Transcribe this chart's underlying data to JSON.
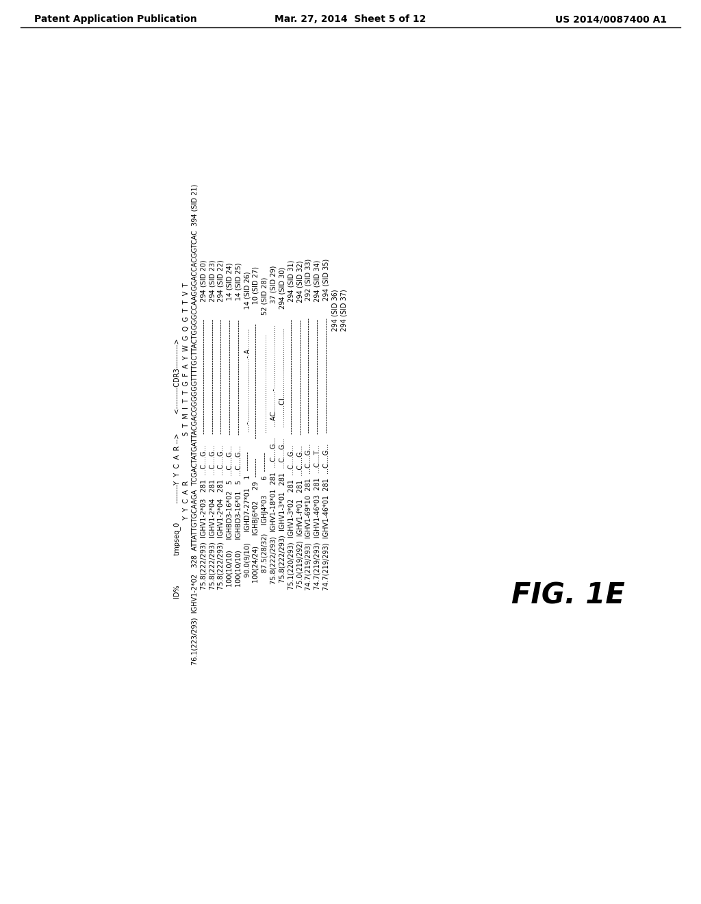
{
  "header_left": "Patent Application Publication",
  "header_center": "Mar. 27, 2014  Sheet 5 of 12",
  "header_right": "US 2014/0087400 A1",
  "figure_label": "FIG. 1E",
  "background_color": "#ffffff",
  "text_color": "#000000",
  "header_fontsize": 10,
  "content_fontsize": 7.0,
  "fig_label_fontsize": 30,
  "main_lines": [
    "ID%              tmpseq_0         --------Y  Y  C  A  R -->         <---------CDR3---------->                                         ",
    "                                  Y  Y  C  A  R                     S  T  M  I  T  T  G  F  A  Y  W  G  Q  G  T  T  V  T            ",
    "76.1(223/293)  IGHV1-2*02   328  ATTATTGTGCAAGA  TCGACTATGATTACGACGGGGGGTTTTGCTTACTGGGGCCAAGGGACCACGGTCAC  394 (SID 21)",
    "75.8(222/293)  IGHV1-2*03   281  ...C....G...     ------------------------------------------------        294 (SID 20)",
    "75.8(222/293)  IGHV1-2*04   281  ...C....G...     ------------------------------------------------        294 (SID 23)",
    "75.8(222/293)  IGHV1-2*04   281  ...C....G...     ------------------------------------------------        294 (SID 22)",
    "100(10/10)     IGHBD3-16*02   5  ...C....G...     ------------------------------------------------         14 (SID 24)",
    "100(10/10)     IGHBD3-16*01   5  ...C....G...     ------------------------------------------------         14 (SID 25)",
    "90.0(9/10)     IGHD7-27*01    1  --------         ....-...............................-.A..........         14 (SID 26)",
    "100(24/24)     IGHBJ6*02     29  --------         ------------------------------------------------         10 (SID 27)",
    "87.5(28/32)    IGHJ4*03       6  --------         ................................................         52 (SID 28)",
    "75.8(222/293)  IGHV1-18*01  281  ...C....G...     ...AC..........-...............................          37 (SID 29)",
    "75.8(222/293)  IGHV1-3*01   281  ...C....G...     ...........CI..................................         294 (SID 30)",
    "75.1(220/293)  IGHV1-3*02   281  ...C....G...     ------------------------------------------------        294 (SID 31)",
    "75.0(219/292)  IGHV1-f*01   281  ...C....G...     ------------------------------------------------        294 (SID 32)",
    "74.7(219/293)  IGHV1-69*10  281  ...C....G...     ------------------------------------------------        292 (SID 33)",
    "74.7(219/293)  IGHV1-46*03  281  ...C....T...     ------------------------------------------------        294 (SID 34)",
    "74.7(219/293)  IGHV1-46*01  281  ...C....G...     ------------------------------------------------        294 (SID 35)",
    "                                                                                                           294 (SID 36)",
    "                                                                                                           294 (SID 37)"
  ]
}
